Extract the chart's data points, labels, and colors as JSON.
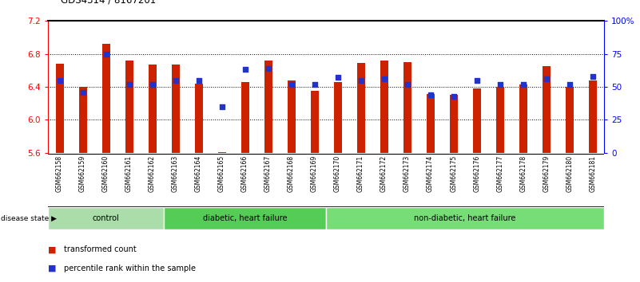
{
  "title": "GDS4314 / 8167201",
  "samples": [
    "GSM662158",
    "GSM662159",
    "GSM662160",
    "GSM662161",
    "GSM662162",
    "GSM662163",
    "GSM662164",
    "GSM662165",
    "GSM662166",
    "GSM662167",
    "GSM662168",
    "GSM662169",
    "GSM662170",
    "GSM662171",
    "GSM662172",
    "GSM662173",
    "GSM662174",
    "GSM662175",
    "GSM662176",
    "GSM662177",
    "GSM662178",
    "GSM662179",
    "GSM662180",
    "GSM662181"
  ],
  "bar_values": [
    6.68,
    6.4,
    6.92,
    6.72,
    6.67,
    6.67,
    6.44,
    5.61,
    6.46,
    6.72,
    6.48,
    6.35,
    6.46,
    6.69,
    6.72,
    6.7,
    6.31,
    6.3,
    6.38,
    6.4,
    6.43,
    6.65,
    6.4,
    6.48
  ],
  "percentile_values": [
    55,
    46,
    75,
    52,
    52,
    55,
    55,
    35,
    63,
    64,
    52,
    52,
    57,
    55,
    56,
    52,
    44,
    43,
    55,
    52,
    52,
    56,
    52,
    58
  ],
  "bar_color": "#cc2200",
  "percentile_color": "#2233cc",
  "y_min": 5.6,
  "y_max": 7.2,
  "yticks_left": [
    5.6,
    6.0,
    6.4,
    6.8,
    7.2
  ],
  "yticks_right": [
    0,
    25,
    50,
    75,
    100
  ],
  "ytick_labels_right": [
    "0",
    "25",
    "50",
    "75",
    "100%"
  ],
  "groups": [
    {
      "label": "control",
      "start": 0,
      "end": 5,
      "color": "#aaddaa"
    },
    {
      "label": "diabetic, heart failure",
      "start": 5,
      "end": 12,
      "color": "#55cc55"
    },
    {
      "label": "non-diabetic, heart failure",
      "start": 12,
      "end": 24,
      "color": "#77dd77"
    }
  ],
  "disease_state_label": "disease state",
  "legend_bar_label": "transformed count",
  "legend_pct_label": "percentile rank within the sample",
  "bar_width": 0.35,
  "xtick_bg": "#cccccc",
  "group_border_color": "#ffffff"
}
